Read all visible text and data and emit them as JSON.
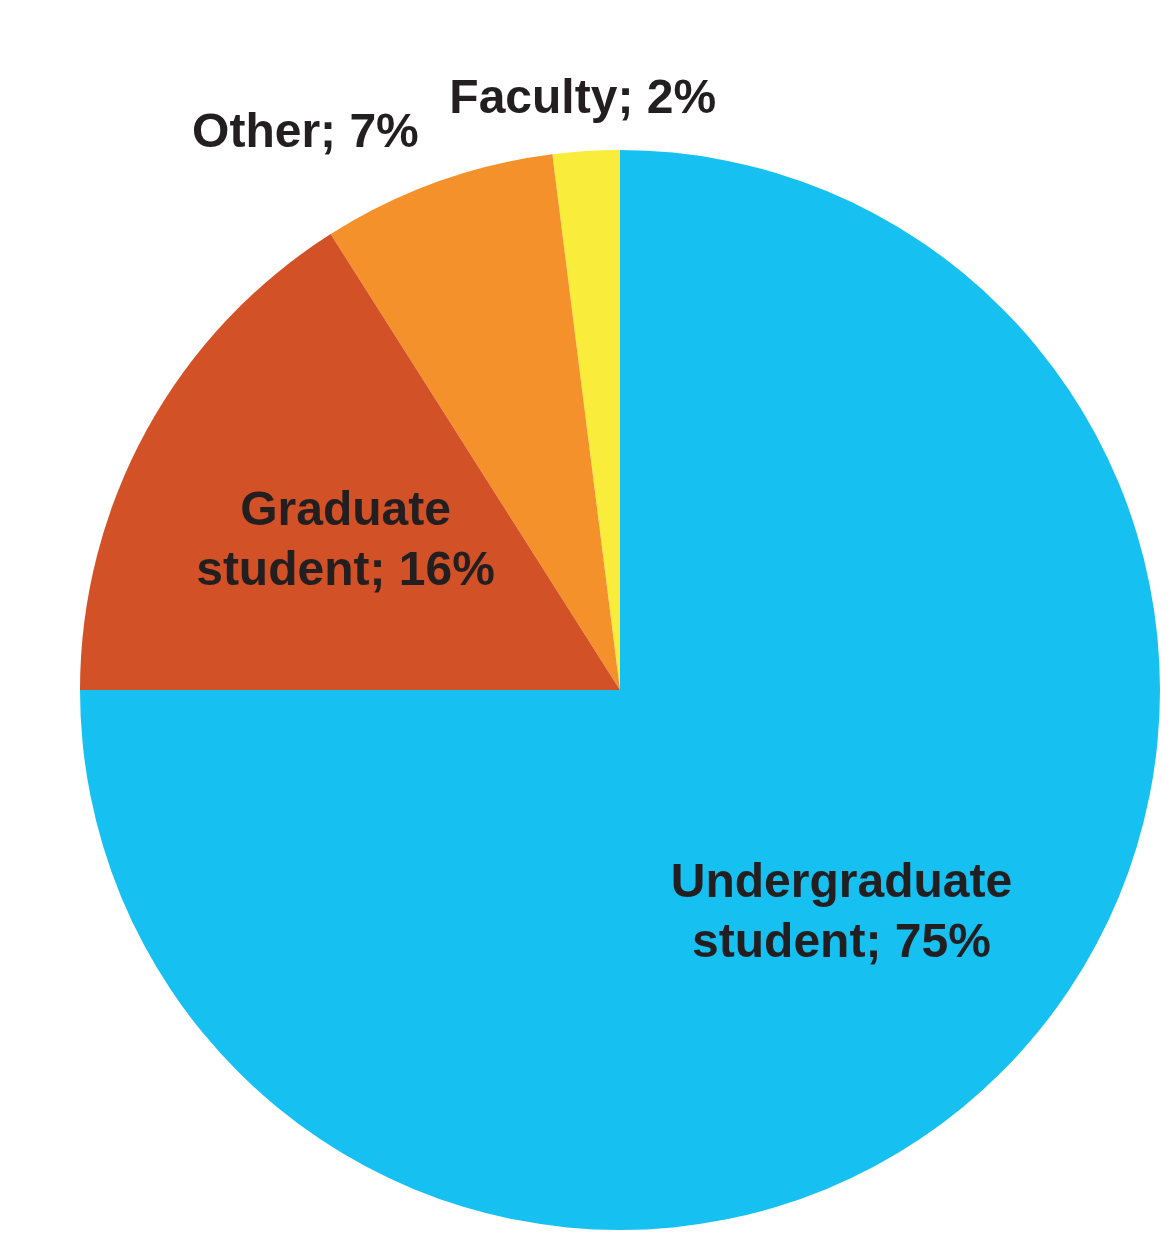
{
  "chart_data": {
    "type": "pie",
    "categories": [
      "Undergraduate student",
      "Graduate student",
      "Other",
      "Faculty"
    ],
    "values": [
      75,
      16,
      7,
      2
    ],
    "colors": [
      "#16c0f0",
      "#d35127",
      "#f5912b",
      "#f9ec3b"
    ],
    "value_labels": [
      "; 75%",
      "; 16%",
      "; 7%",
      "; 2%"
    ]
  }
}
